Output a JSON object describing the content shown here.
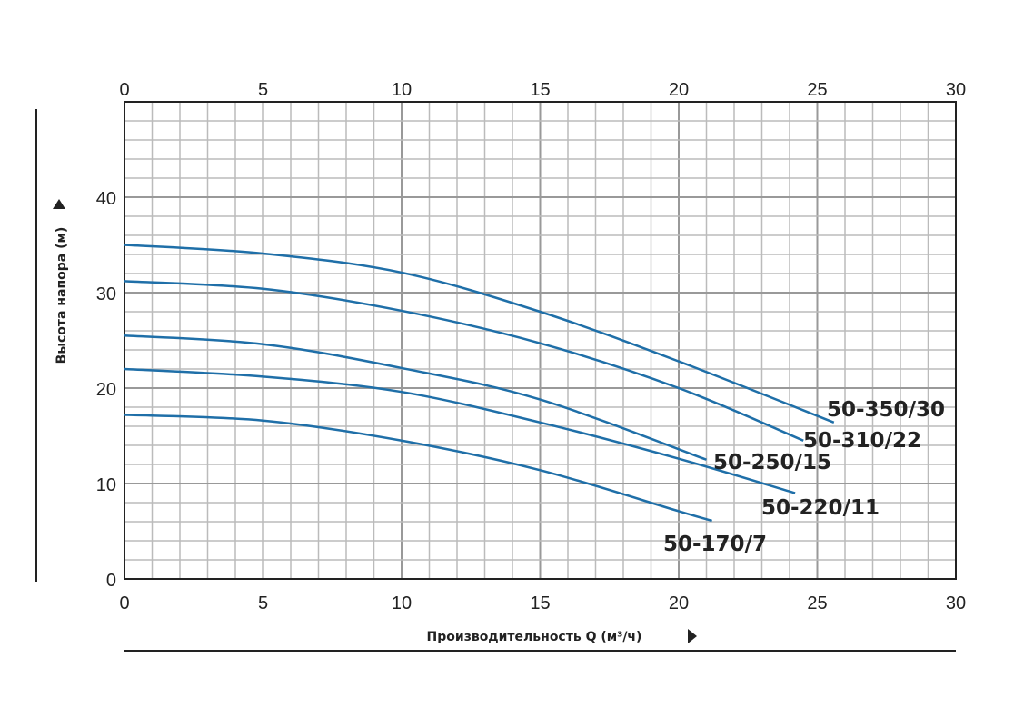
{
  "chart_data": {
    "type": "line",
    "xlabel": "Производительность Q (м³/ч)",
    "ylabel": "Высота напора (м)",
    "xlim": [
      0,
      30
    ],
    "ylim": [
      0,
      50
    ],
    "x_ticks": [
      0,
      5,
      10,
      15,
      20,
      25,
      30
    ],
    "y_ticks": [
      0,
      10,
      20,
      30,
      40
    ],
    "grid": true,
    "line_color": "#1f6fa8",
    "series": [
      {
        "name": "50-350/30",
        "points": [
          [
            0,
            35.0
          ],
          [
            5,
            34.1
          ],
          [
            10,
            32.1
          ],
          [
            15,
            28.0
          ],
          [
            20,
            22.8
          ],
          [
            25.6,
            16.4
          ]
        ]
      },
      {
        "name": "50-310/22",
        "points": [
          [
            0,
            31.2
          ],
          [
            5,
            30.4
          ],
          [
            10,
            28.1
          ],
          [
            15,
            24.7
          ],
          [
            20,
            20.0
          ],
          [
            24.5,
            14.5
          ]
        ]
      },
      {
        "name": "50-250/15",
        "points": [
          [
            0,
            25.5
          ],
          [
            5,
            24.6
          ],
          [
            10,
            22.1
          ],
          [
            15,
            18.8
          ],
          [
            21.0,
            12.5
          ]
        ]
      },
      {
        "name": "50-220/11",
        "points": [
          [
            0,
            22.0
          ],
          [
            5,
            21.2
          ],
          [
            10,
            19.6
          ],
          [
            15,
            16.4
          ],
          [
            20,
            12.6
          ],
          [
            24.2,
            9.0
          ]
        ]
      },
      {
        "name": "50-170/7",
        "points": [
          [
            0,
            17.2
          ],
          [
            5,
            16.6
          ],
          [
            10,
            14.5
          ],
          [
            15,
            11.4
          ],
          [
            20,
            7.1
          ],
          [
            21.2,
            6.1
          ]
        ]
      }
    ]
  }
}
